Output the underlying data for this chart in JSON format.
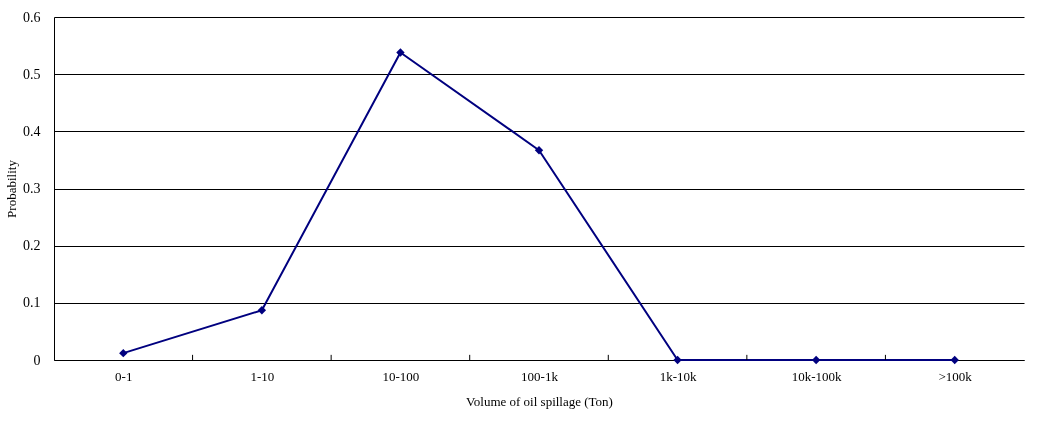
{
  "chart_data": {
    "type": "line",
    "xlabel": "Volume of oil spillage (Ton)",
    "ylabel": "Probability",
    "categories": [
      "0-1",
      "1-10",
      "10-100",
      "100-1k",
      "1k-10k",
      "10k-100k",
      ">100k"
    ],
    "series": [
      {
        "color": "#00007f",
        "values": [
          0.012,
          0.087,
          0.538,
          0.367,
          0,
          0,
          0
        ]
      }
    ],
    "ylim": [
      0,
      0.6
    ],
    "yticks": [
      0,
      0.1,
      0.2,
      0.3,
      0.4,
      0.5,
      0.6
    ],
    "grid": "y",
    "legend": false,
    "marker": "diamond",
    "line_style": "solid"
  }
}
